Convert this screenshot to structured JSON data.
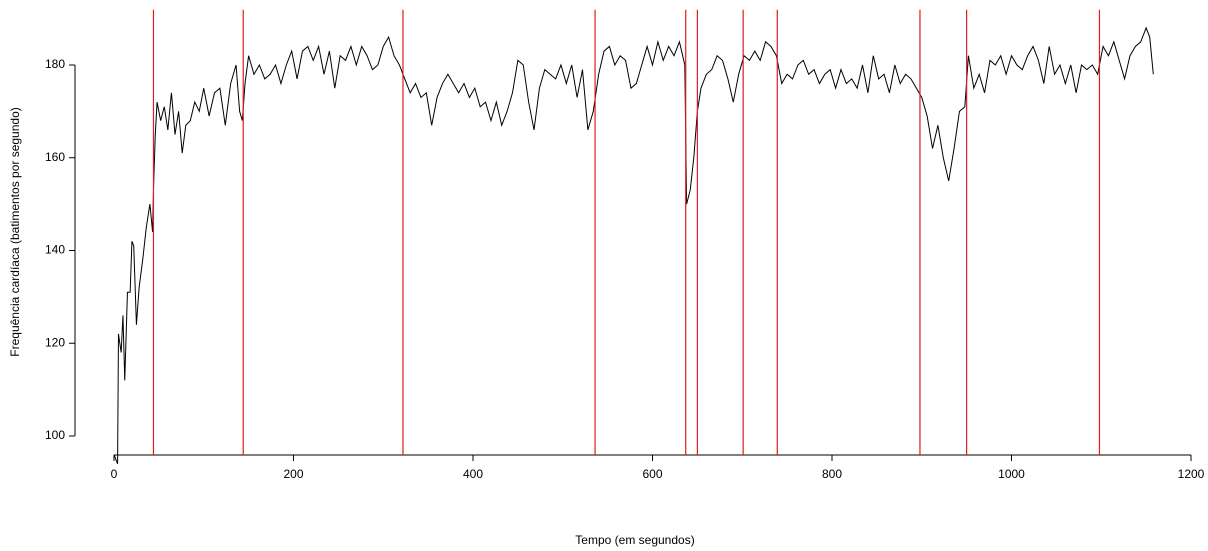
{
  "chart_data": {
    "type": "line",
    "xlabel": "Tempo (em segundos)",
    "ylabel": "Frequência cardíaca (batimentos por segundo)",
    "x": [
      0,
      2,
      4,
      5,
      8,
      10,
      12,
      15,
      18,
      20,
      22,
      25,
      28,
      32,
      36,
      40,
      43,
      44,
      46,
      48,
      52,
      56,
      60,
      64,
      68,
      72,
      76,
      80,
      85,
      90,
      95,
      100,
      106,
      112,
      118,
      124,
      130,
      136,
      140,
      143,
      146,
      150,
      156,
      162,
      168,
      174,
      180,
      186,
      192,
      198,
      204,
      210,
      216,
      222,
      228,
      234,
      240,
      246,
      252,
      258,
      264,
      270,
      276,
      282,
      288,
      294,
      300,
      306,
      312,
      318,
      324,
      330,
      336,
      342,
      348,
      354,
      360,
      366,
      372,
      378,
      384,
      390,
      396,
      402,
      408,
      414,
      420,
      426,
      432,
      438,
      444,
      450,
      456,
      462,
      468,
      474,
      480,
      486,
      492,
      498,
      504,
      510,
      516,
      522,
      528,
      534,
      540,
      546,
      552,
      558,
      564,
      570,
      576,
      582,
      588,
      594,
      600,
      606,
      612,
      618,
      624,
      630,
      636,
      637,
      638,
      642,
      646,
      650,
      654,
      660,
      666,
      672,
      678,
      684,
      690,
      696,
      702,
      708,
      714,
      720,
      726,
      732,
      738,
      744,
      750,
      756,
      762,
      768,
      774,
      780,
      786,
      792,
      798,
      804,
      810,
      816,
      822,
      828,
      834,
      840,
      846,
      852,
      858,
      864,
      870,
      876,
      882,
      888,
      894,
      900,
      906,
      912,
      918,
      924,
      930,
      936,
      942,
      948,
      952,
      958,
      964,
      970,
      976,
      982,
      988,
      994,
      1000,
      1006,
      1012,
      1018,
      1024,
      1030,
      1036,
      1042,
      1048,
      1054,
      1060,
      1066,
      1072,
      1078,
      1084,
      1090,
      1096,
      1102,
      1108,
      1114,
      1120,
      1126,
      1132,
      1138,
      1144,
      1150,
      1154,
      1158
    ],
    "values": [
      96,
      95,
      94,
      122,
      118,
      126,
      112,
      131,
      131,
      142,
      141,
      124,
      132,
      138,
      145,
      150,
      144,
      153,
      165,
      172,
      168,
      171,
      166,
      174,
      165,
      170,
      161,
      167,
      168,
      172,
      170,
      175,
      169,
      174,
      175,
      167,
      176,
      180,
      170,
      168,
      176,
      182,
      178,
      180,
      177,
      178,
      180,
      176,
      180,
      183,
      177,
      183,
      184,
      181,
      184,
      178,
      183,
      175,
      182,
      181,
      184,
      180,
      184,
      182,
      179,
      180,
      184,
      186,
      182,
      180,
      177,
      174,
      176,
      173,
      174,
      167,
      173,
      176,
      178,
      176,
      174,
      176,
      173,
      175,
      171,
      172,
      168,
      172,
      167,
      170,
      174,
      181,
      180,
      172,
      166,
      175,
      179,
      178,
      177,
      180,
      176,
      180,
      173,
      179,
      166,
      170,
      178,
      183,
      184,
      180,
      182,
      181,
      175,
      176,
      180,
      184,
      180,
      185,
      181,
      184,
      182,
      185,
      180,
      165,
      150,
      153,
      160,
      170,
      175,
      178,
      179,
      182,
      181,
      177,
      172,
      178,
      182,
      181,
      183,
      181,
      185,
      184,
      182,
      176,
      178,
      177,
      180,
      181,
      178,
      179,
      176,
      178,
      179,
      175,
      179,
      176,
      177,
      175,
      180,
      174,
      182,
      177,
      178,
      174,
      180,
      176,
      178,
      177,
      175,
      173,
      169,
      162,
      167,
      160,
      155,
      162,
      170,
      171,
      182,
      175,
      178,
      174,
      181,
      180,
      182,
      178,
      182,
      180,
      179,
      182,
      184,
      181,
      176,
      184,
      178,
      180,
      176,
      180,
      174,
      180,
      179,
      180,
      178,
      184,
      182,
      185,
      181,
      177,
      182,
      184,
      185,
      188,
      186,
      178
    ],
    "color": "#000000",
    "vlines": [
      44,
      144,
      322,
      536,
      637,
      650,
      701,
      739,
      898,
      950,
      1098
    ],
    "vline_color": "#e41a1c",
    "xlim": [
      -46,
      1206
    ],
    "ylim": [
      95.9,
      191.9
    ],
    "xticks": [
      0,
      200,
      400,
      600,
      800,
      1000,
      1200
    ],
    "yticks": [
      100,
      120,
      140,
      160,
      180
    ]
  }
}
